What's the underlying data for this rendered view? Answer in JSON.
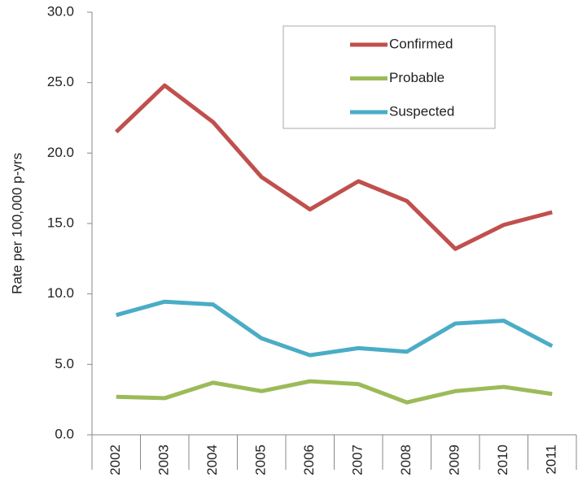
{
  "chart_data": {
    "type": "line",
    "y_label": "Rate per 100,000 p-yrs",
    "categories": [
      "2002",
      "2003",
      "2004",
      "2005",
      "2006",
      "2007",
      "2008",
      "2009",
      "2010",
      "2011"
    ],
    "series": [
      {
        "name": "Confirmed",
        "color": "#c0504d",
        "values": [
          21.5,
          24.8,
          22.2,
          18.3,
          16.0,
          18.0,
          16.6,
          13.2,
          14.9,
          15.8
        ]
      },
      {
        "name": "Probable",
        "color": "#9bbb59",
        "values": [
          2.7,
          2.6,
          3.7,
          3.1,
          3.8,
          3.6,
          2.3,
          3.1,
          3.4,
          2.9
        ]
      },
      {
        "name": "Suspected",
        "color": "#4bacc6",
        "values": [
          8.5,
          9.45,
          9.25,
          6.85,
          5.65,
          6.15,
          5.9,
          7.9,
          8.1,
          6.3
        ]
      }
    ],
    "ylim": [
      0,
      30
    ],
    "yticks": [
      {
        "value": 0,
        "label": "0.0"
      },
      {
        "value": 5,
        "label": "5.0"
      },
      {
        "value": 10,
        "label": "10.0"
      },
      {
        "value": 15,
        "label": "15.0"
      },
      {
        "value": 20,
        "label": "20.0"
      },
      {
        "value": 25,
        "label": "25.0"
      },
      {
        "value": 30,
        "label": "30.0"
      }
    ],
    "legend": "top-right"
  }
}
